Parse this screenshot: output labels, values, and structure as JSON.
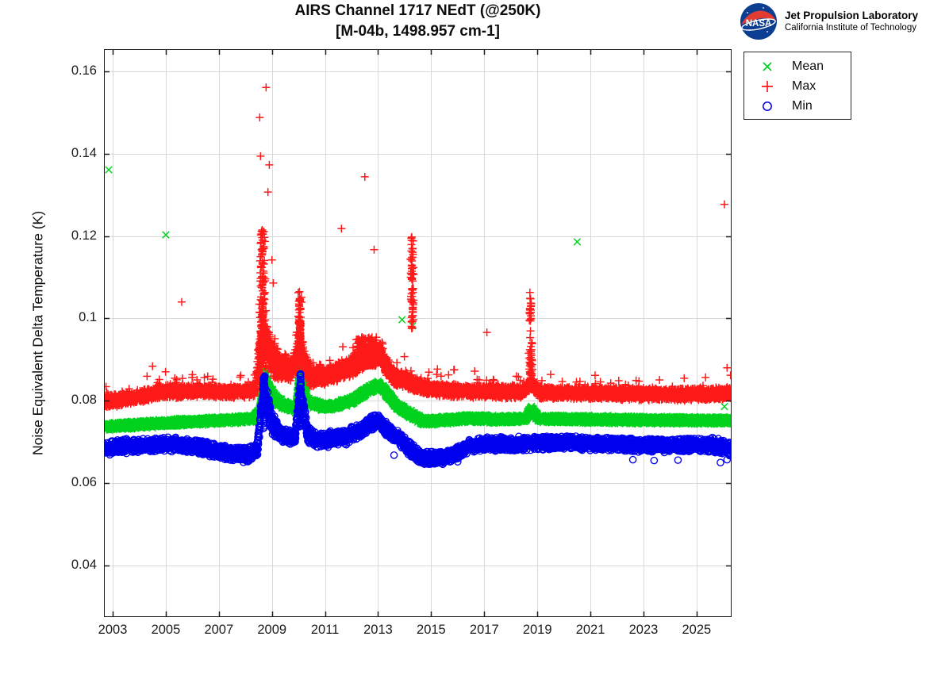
{
  "header": {
    "title_line1": "AIRS Channel 1717 NEdT (@250K)",
    "title_line2": "[M-04b, 1498.957 cm-1]",
    "logo": {
      "org": "NASA",
      "line1": "Jet Propulsion Laboratory",
      "line2": "California Institute of Technology",
      "meatball_blue": "#0b3d91",
      "swoosh_red": "#e03c31"
    }
  },
  "legend": {
    "items": [
      {
        "label": "Mean",
        "marker": "x",
        "color": "#00d21e"
      },
      {
        "label": "Max",
        "marker": "plus",
        "color": "#ff1a1a"
      },
      {
        "label": "Min",
        "marker": "circle",
        "color": "#0000ee"
      }
    ]
  },
  "chart_data": {
    "type": "scatter",
    "title": "AIRS Channel 1717 NEdT (@250K) [M-04b, 1498.957 cm-1]",
    "xlabel": "",
    "ylabel": "Noise Equivalent Delta Temperature (K)",
    "x_range": [
      2002.67,
      2026.32
    ],
    "y_range": [
      0.02748,
      0.16539
    ],
    "x_ticks": [
      2003,
      2005,
      2007,
      2009,
      2011,
      2013,
      2015,
      2017,
      2019,
      2021,
      2023,
      2025
    ],
    "x_tick_labels": [
      "2003",
      "2005",
      "2007",
      "2009",
      "2011",
      "2013",
      "2015",
      "2017",
      "2019",
      "2021",
      "2023",
      "2025"
    ],
    "y_ticks": [
      0.04,
      0.06,
      0.08,
      0.1,
      0.12,
      0.14,
      0.16
    ],
    "y_tick_labels": [
      "0.04",
      "0.06",
      "0.08",
      "0.1",
      "0.12",
      "0.14",
      "0.16"
    ],
    "grid": true,
    "grid_color": "#d9d9d9",
    "legend_position": "top-right-outside",
    "series": [
      {
        "name": "Mean",
        "marker": "x",
        "color": "#00d21e",
        "step_days": 1,
        "profile": [
          [
            2002.67,
            0.0737
          ],
          [
            2004.0,
            0.0742
          ],
          [
            2005.5,
            0.0748
          ],
          [
            2007.0,
            0.0752
          ],
          [
            2008.3,
            0.0756
          ],
          [
            2008.55,
            0.0775
          ],
          [
            2008.68,
            0.0862
          ],
          [
            2008.85,
            0.0832
          ],
          [
            2009.1,
            0.0806
          ],
          [
            2009.45,
            0.079
          ],
          [
            2009.9,
            0.078
          ],
          [
            2010.02,
            0.0855
          ],
          [
            2010.09,
            0.0915
          ],
          [
            2010.18,
            0.0845
          ],
          [
            2010.35,
            0.0798
          ],
          [
            2010.9,
            0.0786
          ],
          [
            2011.4,
            0.0788
          ],
          [
            2012.0,
            0.08
          ],
          [
            2012.6,
            0.0825
          ],
          [
            2013.0,
            0.0838
          ],
          [
            2013.2,
            0.0828
          ],
          [
            2013.7,
            0.0788
          ],
          [
            2014.2,
            0.0768
          ],
          [
            2014.7,
            0.075
          ],
          [
            2015.6,
            0.0753
          ],
          [
            2016.3,
            0.0757
          ],
          [
            2017.5,
            0.0755
          ],
          [
            2018.55,
            0.0756
          ],
          [
            2018.78,
            0.078
          ],
          [
            2019.05,
            0.0756
          ],
          [
            2021.0,
            0.0755
          ],
          [
            2023.5,
            0.0753
          ],
          [
            2026.32,
            0.0752
          ]
        ],
        "spread": [
          [
            2002.67,
            0.001
          ],
          [
            2008.4,
            0.001
          ],
          [
            2008.6,
            0.002
          ],
          [
            2009.0,
            0.0016
          ],
          [
            2009.5,
            0.0011
          ],
          [
            2009.95,
            0.0012
          ],
          [
            2010.05,
            0.0022
          ],
          [
            2010.2,
            0.0014
          ],
          [
            2010.5,
            0.0011
          ],
          [
            2026.32,
            0.001
          ]
        ],
        "clusters": [
          {
            "x_center": 2008.7,
            "x_sigma": 0.035,
            "count": 40,
            "v_min": 0.0805,
            "v_max": 0.088,
            "bias": 1.2
          },
          {
            "x_center": 2010.08,
            "x_sigma": 0.03,
            "count": 35,
            "v_min": 0.082,
            "v_max": 0.0935,
            "bias": 1.2
          }
        ],
        "outliers": [
          [
            2002.85,
            0.1361
          ],
          [
            2005.0,
            0.1203
          ],
          [
            2013.9,
            0.0997
          ],
          [
            2014.3,
            0.0982
          ],
          [
            2020.5,
            0.1186
          ],
          [
            2026.05,
            0.0786
          ]
        ]
      },
      {
        "name": "Max",
        "marker": "plus",
        "color": "#ff1a1a",
        "step_days": 1,
        "tail": {
          "prob": 0.01,
          "mag": 0.004
        },
        "profile": [
          [
            2002.67,
            0.0797
          ],
          [
            2003.6,
            0.0806
          ],
          [
            2004.8,
            0.082
          ],
          [
            2006.2,
            0.0824
          ],
          [
            2007.5,
            0.0821
          ],
          [
            2008.35,
            0.0825
          ],
          [
            2008.5,
            0.089
          ],
          [
            2008.7,
            0.094
          ],
          [
            2008.95,
            0.0915
          ],
          [
            2009.25,
            0.0885
          ],
          [
            2009.7,
            0.0872
          ],
          [
            2009.93,
            0.0905
          ],
          [
            2010.07,
            0.0935
          ],
          [
            2010.22,
            0.0895
          ],
          [
            2010.45,
            0.0858
          ],
          [
            2011.0,
            0.086
          ],
          [
            2011.6,
            0.0873
          ],
          [
            2012.1,
            0.0888
          ],
          [
            2012.55,
            0.091
          ],
          [
            2013.05,
            0.0918
          ],
          [
            2013.3,
            0.0885
          ],
          [
            2013.65,
            0.0855
          ],
          [
            2014.1,
            0.0848
          ],
          [
            2014.6,
            0.0835
          ],
          [
            2015.2,
            0.0827
          ],
          [
            2016.5,
            0.0823
          ],
          [
            2018.4,
            0.0821
          ],
          [
            2018.75,
            0.0843
          ],
          [
            2019.1,
            0.082
          ],
          [
            2020.5,
            0.0819
          ],
          [
            2022.5,
            0.0817
          ],
          [
            2024.5,
            0.0815
          ],
          [
            2026.32,
            0.0818
          ]
        ],
        "spread": [
          [
            2002.67,
            0.0016
          ],
          [
            2008.35,
            0.0016
          ],
          [
            2008.5,
            0.0055
          ],
          [
            2008.95,
            0.006
          ],
          [
            2009.25,
            0.0035
          ],
          [
            2009.8,
            0.003
          ],
          [
            2009.95,
            0.0045
          ],
          [
            2010.15,
            0.0045
          ],
          [
            2010.35,
            0.0028
          ],
          [
            2011.0,
            0.0022
          ],
          [
            2011.8,
            0.0026
          ],
          [
            2012.6,
            0.003
          ],
          [
            2013.1,
            0.0028
          ],
          [
            2013.6,
            0.0022
          ],
          [
            2014.3,
            0.002
          ],
          [
            2015.0,
            0.0017
          ],
          [
            2026.32,
            0.0016
          ]
        ],
        "clusters": [
          {
            "x_center": 2008.63,
            "x_sigma": 0.1,
            "count": 160,
            "v_min": 0.0935,
            "v_max": 0.1225,
            "bias": 2.0
          },
          {
            "x_center": 2010.05,
            "x_sigma": 0.06,
            "count": 120,
            "v_min": 0.0885,
            "v_max": 0.1068,
            "bias": 1.6
          },
          {
            "x_center": 2012.55,
            "x_sigma": 0.5,
            "count": 200,
            "v_min": 0.0885,
            "v_max": 0.0955,
            "bias": 1.4
          },
          {
            "x_center": 2014.28,
            "x_sigma": 0.06,
            "count": 60,
            "v_min": 0.0975,
            "v_max": 0.12,
            "bias": 1.1
          },
          {
            "x_center": 2018.75,
            "x_sigma": 0.07,
            "count": 80,
            "v_min": 0.0845,
            "v_max": 0.105,
            "bias": 1.9
          }
        ],
        "outliers": [
          [
            2004.5,
            0.0884
          ],
          [
            2005.6,
            0.104
          ],
          [
            2008.54,
            0.1488
          ],
          [
            2008.57,
            0.1394
          ],
          [
            2008.62,
            0.1124
          ],
          [
            2008.7,
            0.1211
          ],
          [
            2008.72,
            0.1197
          ],
          [
            2008.78,
            0.1561
          ],
          [
            2008.85,
            0.1307
          ],
          [
            2008.9,
            0.1373
          ],
          [
            2009.0,
            0.1142
          ],
          [
            2009.05,
            0.1086
          ],
          [
            2011.62,
            0.1218
          ],
          [
            2012.5,
            0.1344
          ],
          [
            2012.85,
            0.1167
          ],
          [
            2014.25,
            0.1195
          ],
          [
            2014.3,
            0.117
          ],
          [
            2017.1,
            0.0966
          ],
          [
            2018.7,
            0.0995
          ],
          [
            2018.72,
            0.1063
          ],
          [
            2018.76,
            0.1015
          ],
          [
            2019.5,
            0.0864
          ],
          [
            2026.05,
            0.1277
          ],
          [
            2026.15,
            0.088
          ],
          [
            2026.28,
            0.0862
          ]
        ]
      },
      {
        "name": "Min",
        "marker": "circle",
        "color": "#0000ee",
        "step_days": 1.7,
        "profile": [
          [
            2002.67,
            0.0684
          ],
          [
            2003.4,
            0.0691
          ],
          [
            2004.6,
            0.0693
          ],
          [
            2005.4,
            0.0694
          ],
          [
            2006.1,
            0.0688
          ],
          [
            2006.8,
            0.0679
          ],
          [
            2007.4,
            0.0672
          ],
          [
            2008.1,
            0.0668
          ],
          [
            2008.45,
            0.0685
          ],
          [
            2008.6,
            0.078
          ],
          [
            2008.7,
            0.0822
          ],
          [
            2008.82,
            0.08
          ],
          [
            2009.0,
            0.0748
          ],
          [
            2009.25,
            0.0722
          ],
          [
            2009.6,
            0.0713
          ],
          [
            2009.88,
            0.0712
          ],
          [
            2009.98,
            0.078
          ],
          [
            2010.08,
            0.0828
          ],
          [
            2010.2,
            0.0772
          ],
          [
            2010.35,
            0.0718
          ],
          [
            2010.7,
            0.0706
          ],
          [
            2011.2,
            0.0707
          ],
          [
            2011.8,
            0.0713
          ],
          [
            2012.3,
            0.0726
          ],
          [
            2012.8,
            0.0748
          ],
          [
            2013.05,
            0.0752
          ],
          [
            2013.35,
            0.0728
          ],
          [
            2013.75,
            0.0712
          ],
          [
            2014.15,
            0.0685
          ],
          [
            2014.6,
            0.0662
          ],
          [
            2015.4,
            0.0661
          ],
          [
            2015.9,
            0.067
          ],
          [
            2016.4,
            0.069
          ],
          [
            2017.2,
            0.0695
          ],
          [
            2018.5,
            0.0696
          ],
          [
            2020.0,
            0.0698
          ],
          [
            2021.5,
            0.0695
          ],
          [
            2023.0,
            0.0692
          ],
          [
            2024.5,
            0.0693
          ],
          [
            2025.6,
            0.0692
          ],
          [
            2026.32,
            0.0684
          ]
        ],
        "spread": [
          [
            2002.67,
            0.0019
          ],
          [
            2008.4,
            0.0019
          ],
          [
            2008.6,
            0.0032
          ],
          [
            2008.9,
            0.003
          ],
          [
            2009.3,
            0.0022
          ],
          [
            2009.9,
            0.002
          ],
          [
            2010.0,
            0.003
          ],
          [
            2010.25,
            0.0028
          ],
          [
            2010.5,
            0.002
          ],
          [
            2013.0,
            0.002
          ],
          [
            2014.8,
            0.0018
          ],
          [
            2026.32,
            0.0019
          ]
        ],
        "clusters": [
          {
            "x_center": 2008.7,
            "x_sigma": 0.04,
            "count": 55,
            "v_min": 0.073,
            "v_max": 0.086,
            "bias": 1.0
          },
          {
            "x_center": 2010.07,
            "x_sigma": 0.035,
            "count": 50,
            "v_min": 0.0735,
            "v_max": 0.0868,
            "bias": 1.0
          }
        ],
        "outliers": [
          [
            2013.6,
            0.0668
          ],
          [
            2014.9,
            0.0646
          ],
          [
            2015.2,
            0.0648
          ],
          [
            2016.0,
            0.0652
          ],
          [
            2022.6,
            0.0657
          ],
          [
            2023.4,
            0.0655
          ],
          [
            2024.3,
            0.0656
          ],
          [
            2025.9,
            0.065
          ],
          [
            2026.15,
            0.0657
          ]
        ]
      }
    ]
  }
}
